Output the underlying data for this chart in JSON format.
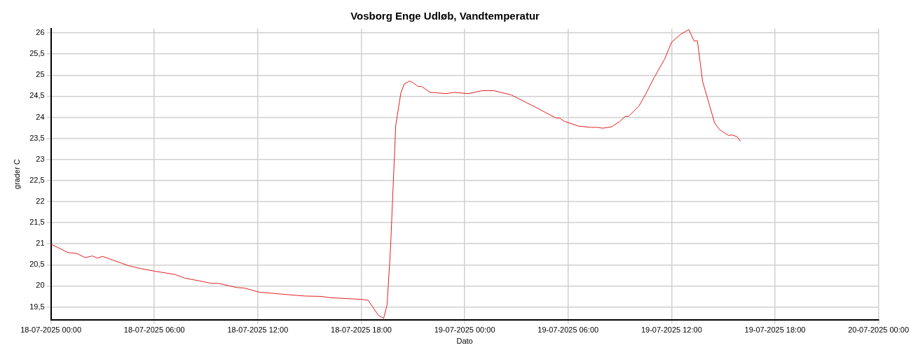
{
  "chart_data": {
    "type": "line",
    "title": "Vosborg Enge Udløb, Vandtemperatur",
    "xlabel": "Dato",
    "ylabel": "grader C",
    "xlim": [
      "2025-07-18T00:00",
      "2025-07-20T00:00"
    ],
    "ylim": [
      19.2,
      26.1
    ],
    "xticks": [
      {
        "value": "2025-07-18T00:00",
        "label": "18-07-2025 00:00"
      },
      {
        "value": "2025-07-18T06:00",
        "label": "18-07-2025 06:00"
      },
      {
        "value": "2025-07-18T12:00",
        "label": "18-07-2025 12:00"
      },
      {
        "value": "2025-07-18T18:00",
        "label": "18-07-2025 18:00"
      },
      {
        "value": "2025-07-19T00:00",
        "label": "19-07-2025 00:00"
      },
      {
        "value": "2025-07-19T06:00",
        "label": "19-07-2025 06:00"
      },
      {
        "value": "2025-07-19T12:00",
        "label": "19-07-2025 12:00"
      },
      {
        "value": "2025-07-19T18:00",
        "label": "19-07-2025 18:00"
      },
      {
        "value": "2025-07-20T00:00",
        "label": "20-07-2025 00:00"
      }
    ],
    "yticks": [
      {
        "value": 19.5,
        "label": "19,5"
      },
      20,
      {
        "value": 20.5,
        "label": "20,5"
      },
      21,
      {
        "value": 21.5,
        "label": "21,5"
      },
      22,
      {
        "value": 22.5,
        "label": "22,5"
      },
      23,
      {
        "value": 23.5,
        "label": "23,5"
      },
      24,
      {
        "value": 24.5,
        "label": "24,5"
      },
      25,
      {
        "value": 25.5,
        "label": "25,5"
      },
      26
    ],
    "grid": true,
    "legend": false,
    "marker": "none",
    "line_style": "solid",
    "series": [
      {
        "color": "#e02020",
        "x": [
          "2025-07-18T00:00",
          "2025-07-18T01:00",
          "2025-07-18T01:30",
          "2025-07-18T02:00",
          "2025-07-18T02:24",
          "2025-07-18T02:42",
          "2025-07-18T03:00",
          "2025-07-18T03:24",
          "2025-07-18T04:30",
          "2025-07-18T05:12",
          "2025-07-18T06:00",
          "2025-07-18T07:12",
          "2025-07-18T07:48",
          "2025-07-18T08:36",
          "2025-07-18T09:18",
          "2025-07-18T09:42",
          "2025-07-18T10:48",
          "2025-07-18T11:12",
          "2025-07-18T12:06",
          "2025-07-18T12:42",
          "2025-07-18T13:30",
          "2025-07-18T14:42",
          "2025-07-18T15:42",
          "2025-07-18T16:12",
          "2025-07-18T17:06",
          "2025-07-18T18:00",
          "2025-07-18T18:24",
          "2025-07-18T19:00",
          "2025-07-18T19:18",
          "2025-07-18T19:30",
          "2025-07-18T19:42",
          "2025-07-18T20:00",
          "2025-07-18T20:18",
          "2025-07-18T20:30",
          "2025-07-18T20:48",
          "2025-07-18T21:00",
          "2025-07-18T21:18",
          "2025-07-18T21:30",
          "2025-07-18T22:00",
          "2025-07-18T22:24",
          "2025-07-18T22:54",
          "2025-07-18T23:24",
          "2025-07-19T00:12",
          "2025-07-19T01:00",
          "2025-07-19T01:42",
          "2025-07-19T02:42",
          "2025-07-19T04:06",
          "2025-07-19T05:18",
          "2025-07-19T05:30",
          "2025-07-19T05:48",
          "2025-07-19T06:36",
          "2025-07-19T07:18",
          "2025-07-19T07:42",
          "2025-07-19T08:00",
          "2025-07-19T08:30",
          "2025-07-19T09:00",
          "2025-07-19T09:18",
          "2025-07-19T09:30",
          "2025-07-19T10:06",
          "2025-07-19T10:30",
          "2025-07-19T11:00",
          "2025-07-19T11:36",
          "2025-07-19T12:00",
          "2025-07-19T12:30",
          "2025-07-19T13:00",
          "2025-07-19T13:18",
          "2025-07-19T13:30",
          "2025-07-19T13:48",
          "2025-07-19T14:30",
          "2025-07-19T14:48",
          "2025-07-19T15:18",
          "2025-07-19T15:30",
          "2025-07-19T15:48",
          "2025-07-19T16:00"
        ],
        "values": [
          20.99,
          20.79,
          20.77,
          20.67,
          20.71,
          20.66,
          20.7,
          20.64,
          20.48,
          20.41,
          20.35,
          20.27,
          20.18,
          20.12,
          20.06,
          20.06,
          19.96,
          19.95,
          19.85,
          19.83,
          19.8,
          19.76,
          19.75,
          19.72,
          19.7,
          19.68,
          19.66,
          19.3,
          19.23,
          19.55,
          20.9,
          23.8,
          24.58,
          24.79,
          24.86,
          24.82,
          24.73,
          24.73,
          24.59,
          24.58,
          24.56,
          24.59,
          24.56,
          24.63,
          24.63,
          24.53,
          24.24,
          23.98,
          23.98,
          23.9,
          23.79,
          23.76,
          23.76,
          23.74,
          23.77,
          23.9,
          24.02,
          24.02,
          24.26,
          24.55,
          24.95,
          25.38,
          25.78,
          25.96,
          26.08,
          25.81,
          25.81,
          24.85,
          23.86,
          23.7,
          23.57,
          23.58,
          23.54,
          23.43
        ]
      }
    ]
  }
}
